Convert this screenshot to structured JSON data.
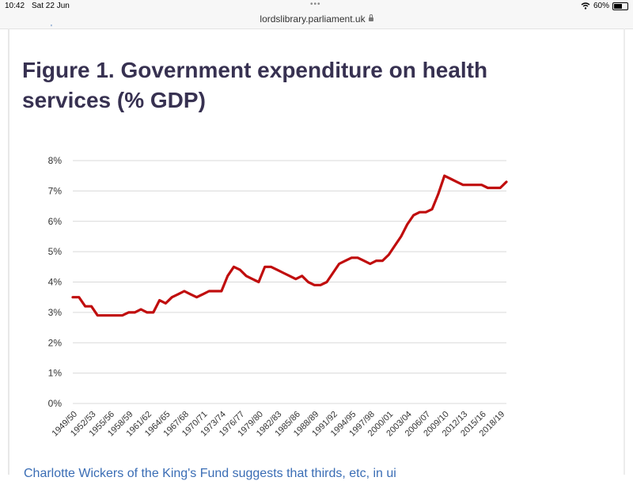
{
  "status_bar": {
    "time": "10:42",
    "date": "Sat 22 Jun",
    "battery_text": "60%",
    "battery_level": 0.6,
    "icons": [
      "wifi-icon",
      "battery-icon"
    ]
  },
  "browser": {
    "url": "lordslibrary.parliament.uk",
    "secure": true
  },
  "page": {
    "partial_top_text": "'",
    "figure_title": "Figure 1. Government expenditure on health services (% GDP)",
    "bottom_text": "Charlotte Wickers of the King's Fund suggests that thirds, etc, in ui"
  },
  "colors": {
    "title": "#373151",
    "line": "#c00d0d",
    "link": "#3a6db5",
    "grid": "#d9d9d9"
  },
  "chart_data": {
    "type": "line",
    "title": "Figure 1. Government expenditure on health services (% GDP)",
    "xlabel": "",
    "ylabel": "",
    "ylim": [
      0,
      8
    ],
    "y_ticks": [
      "0%",
      "1%",
      "2%",
      "3%",
      "4%",
      "5%",
      "6%",
      "7%",
      "8%"
    ],
    "grid": true,
    "x_tick_labels": [
      "1949/50",
      "1952/53",
      "1955/56",
      "1958/59",
      "1961/62",
      "1964/65",
      "1967/68",
      "1970/71",
      "1973/74",
      "1976/77",
      "1979/80",
      "1982/83",
      "1985/86",
      "1988/89",
      "1991/92",
      "1994/95",
      "1997/98",
      "2000/01",
      "2003/04",
      "2006/07",
      "2009/10",
      "2012/13",
      "2015/16",
      "2018/19"
    ],
    "series": [
      {
        "name": "",
        "x": [
          "1949/50",
          "1950/51",
          "1951/52",
          "1952/53",
          "1953/54",
          "1954/55",
          "1955/56",
          "1956/57",
          "1957/58",
          "1958/59",
          "1959/60",
          "1960/61",
          "1961/62",
          "1962/63",
          "1963/64",
          "1964/65",
          "1965/66",
          "1966/67",
          "1967/68",
          "1968/69",
          "1969/70",
          "1970/71",
          "1971/72",
          "1972/73",
          "1973/74",
          "1974/75",
          "1975/76",
          "1976/77",
          "1977/78",
          "1978/79",
          "1979/80",
          "1980/81",
          "1981/82",
          "1982/83",
          "1983/84",
          "1984/85",
          "1985/86",
          "1986/87",
          "1987/88",
          "1988/89",
          "1989/90",
          "1990/91",
          "1991/92",
          "1992/93",
          "1993/94",
          "1994/95",
          "1995/96",
          "1996/97",
          "1997/98",
          "1998/99",
          "1999/00",
          "2000/01",
          "2001/02",
          "2002/03",
          "2003/04",
          "2004/05",
          "2005/06",
          "2006/07",
          "2007/08",
          "2008/09",
          "2009/10",
          "2010/11",
          "2011/12",
          "2012/13",
          "2013/14",
          "2014/15",
          "2015/16",
          "2016/17",
          "2017/18",
          "2018/19",
          "2019/20"
        ],
        "values": [
          3.5,
          3.5,
          3.2,
          3.2,
          2.9,
          2.9,
          2.9,
          2.9,
          2.9,
          3.0,
          3.0,
          3.1,
          3.0,
          3.0,
          3.4,
          3.3,
          3.5,
          3.6,
          3.7,
          3.6,
          3.5,
          3.6,
          3.7,
          3.7,
          3.7,
          4.2,
          4.5,
          4.4,
          4.2,
          4.1,
          4.0,
          4.5,
          4.5,
          4.4,
          4.3,
          4.2,
          4.1,
          4.2,
          4.0,
          3.9,
          3.9,
          4.0,
          4.3,
          4.6,
          4.7,
          4.8,
          4.8,
          4.7,
          4.6,
          4.7,
          4.7,
          4.9,
          5.2,
          5.5,
          5.9,
          6.2,
          6.3,
          6.3,
          6.4,
          6.9,
          7.5,
          7.4,
          7.3,
          7.2,
          7.2,
          7.2,
          7.2,
          7.1,
          7.1,
          7.1,
          7.3
        ]
      }
    ]
  }
}
